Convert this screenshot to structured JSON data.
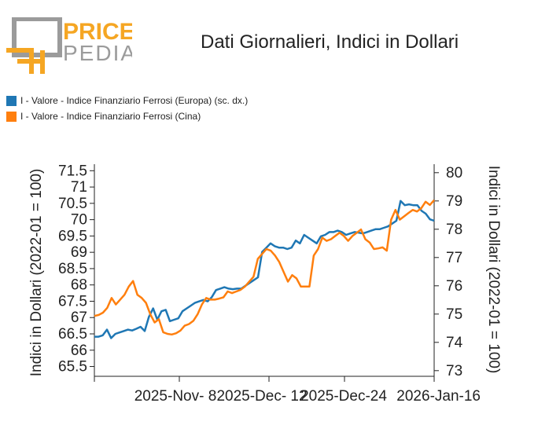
{
  "header": {
    "logo_top": "PRICE",
    "logo_bottom": "PEDIA",
    "title": "Dati Giornalieri, Indici in Dollari"
  },
  "colors": {
    "blue": "#1f77b4",
    "orange": "#ff7f0e",
    "logo_orange": "#f5a623",
    "logo_gray": "#9b9b9b"
  },
  "chart_data": {
    "type": "line",
    "title": "Dati Giornalieri, Indici in Dollari",
    "xlabel": "",
    "ylabel_left": "Indici in Dollari (2022-01 = 100)",
    "ylabel_right": "Indici in Dollari (2022-01 = 100)",
    "ylim_left": [
      65.2,
      71.7
    ],
    "ylim_right": [
      72.8,
      80.3
    ],
    "yticks_left": [
      "65.5",
      "66",
      "66.5",
      "67",
      "67.5",
      "68",
      "68.5",
      "69",
      "69.5",
      "70",
      "70.5",
      "71",
      "71.5"
    ],
    "yticks_right": [
      "73",
      "74",
      "75",
      "76",
      "77",
      "78",
      "79",
      "80"
    ],
    "xticks": [
      "2025-Nov- 8",
      "2025-Dec- 12",
      "2025-Dec-24",
      "2026-Jan-16"
    ],
    "grid": false,
    "legend_position": "top-left",
    "series": [
      {
        "name": "I - Valore - Indice Finanziario Ferrosi (Europa) (sc. dx.)",
        "color": "#1f77b4",
        "axis": "right",
        "values": [
          74.2,
          74.2,
          74.25,
          74.45,
          74.15,
          74.3,
          74.35,
          74.4,
          74.45,
          74.42,
          74.48,
          74.55,
          74.4,
          74.9,
          75.2,
          74.8,
          75.1,
          75.15,
          74.75,
          74.8,
          74.85,
          75.1,
          75.2,
          75.3,
          75.4,
          75.45,
          75.5,
          75.45,
          75.6,
          75.85,
          75.9,
          75.95,
          75.9,
          75.88,
          75.9,
          75.9,
          76.0,
          76.1,
          76.2,
          76.3,
          77.2,
          77.35,
          77.5,
          77.4,
          77.35,
          77.35,
          77.3,
          77.35,
          77.6,
          77.5,
          77.8,
          77.7,
          77.6,
          77.5,
          77.75,
          77.8,
          77.9,
          77.9,
          77.95,
          77.9,
          77.8,
          77.85,
          77.9,
          77.88,
          77.85,
          77.9,
          77.95,
          78.0,
          78.0,
          78.05,
          78.1,
          78.2,
          78.3,
          79.0,
          78.85,
          78.88,
          78.85,
          78.85,
          78.65,
          78.55,
          78.35,
          78.3
        ]
      },
      {
        "name": "I - Valore - Indice Finanziario Ferrosi (Cina)",
        "color": "#ff7f0e",
        "axis": "left",
        "values": [
          67.05,
          67.08,
          67.15,
          67.3,
          67.6,
          67.4,
          67.55,
          67.7,
          67.95,
          68.12,
          67.7,
          67.6,
          67.45,
          67.1,
          66.85,
          66.95,
          66.55,
          66.5,
          66.48,
          66.52,
          66.6,
          66.75,
          66.8,
          66.9,
          67.1,
          67.4,
          67.6,
          67.55,
          67.55,
          67.58,
          67.62,
          67.8,
          67.75,
          67.8,
          67.85,
          67.95,
          68.1,
          68.25,
          68.8,
          68.95,
          69.1,
          69.05,
          68.9,
          68.7,
          68.4,
          68.1,
          68.3,
          68.2,
          67.95,
          67.95,
          67.95,
          68.9,
          69.1,
          69.45,
          69.35,
          69.4,
          69.5,
          69.6,
          69.5,
          69.35,
          69.5,
          69.6,
          69.7,
          69.4,
          69.3,
          69.1,
          69.12,
          69.15,
          69.05,
          70.0,
          70.3,
          70.0,
          70.1,
          70.2,
          70.3,
          70.25,
          70.35,
          70.55,
          70.45,
          70.6
        ]
      }
    ]
  }
}
